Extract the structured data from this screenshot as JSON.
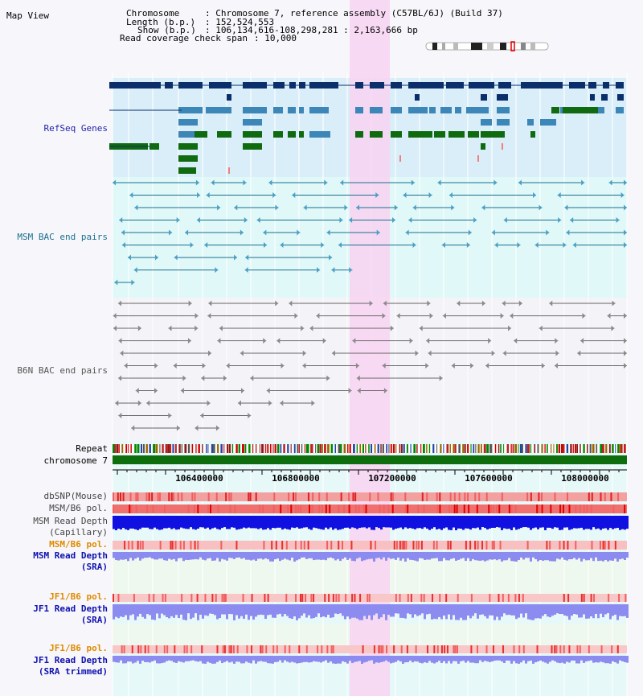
{
  "window": {
    "title": "Map View"
  },
  "header": {
    "chromosome_label": "Chromosome",
    "chromosome_value": ": Chromosome 7, reference assembly (C57BL/6J) (Build 37)",
    "length_label": "Length (b.p.)",
    "length_value": ": 152,524,553",
    "show_label": "Show (b.p.)",
    "show_value": ": 106,134,616-108,298,281 : 2,163,666 bp",
    "coverage_label": "Read coverage check span",
    "coverage_value": ": 10,000"
  },
  "tracks": {
    "refseq": "RefSeq Genes",
    "msm_bac": "MSM BAC end pairs",
    "b6n_bac": "B6N BAC end pairs",
    "repeat": "Repeat",
    "chromosome": "chromosome 7"
  },
  "axis_ticks": [
    "106400000",
    "106800000",
    "107200000",
    "107600000",
    "108000000"
  ],
  "lower_tracks": [
    {
      "label1": "dbSNP(Mouse)",
      "label2": "",
      "color": "#444444"
    },
    {
      "label1": "MSM/B6 pol.",
      "label2": "",
      "color": "#444444"
    },
    {
      "label1": "MSM Read Depth",
      "label2": "(Capillary)",
      "color": "#444444"
    },
    {
      "label1": "MSM/B6 pol.",
      "label2": "",
      "color": "#e08a00"
    },
    {
      "label1": "MSM Read Depth",
      "label2": "(SRA)",
      "color": "#1010b0"
    },
    {
      "label1": "JF1/B6 pol.",
      "label2": "",
      "color": "#e08a00"
    },
    {
      "label1": "JF1 Read Depth",
      "label2": "(SRA)",
      "color": "#1010b0"
    },
    {
      "label1": "JF1/B6 pol.",
      "label2": "",
      "color": "#e08a00"
    },
    {
      "label1": "JF1 Read Depth",
      "label2": "(SRA trimmed)",
      "color": "#1010b0"
    }
  ],
  "colors": {
    "highlight": "#f8d4f2",
    "refseq_dark": "#0b2f6b",
    "refseq_mid": "#3d86b8",
    "refseq_green": "#106a10",
    "msm_line": "#1a6f8f",
    "b6n_line": "#666666",
    "chrom_bar": "#0e6e0e",
    "depth_capillary": "#1010e0",
    "depth_sra": "#8c8cf0",
    "polymorphism": "#e83030"
  }
}
